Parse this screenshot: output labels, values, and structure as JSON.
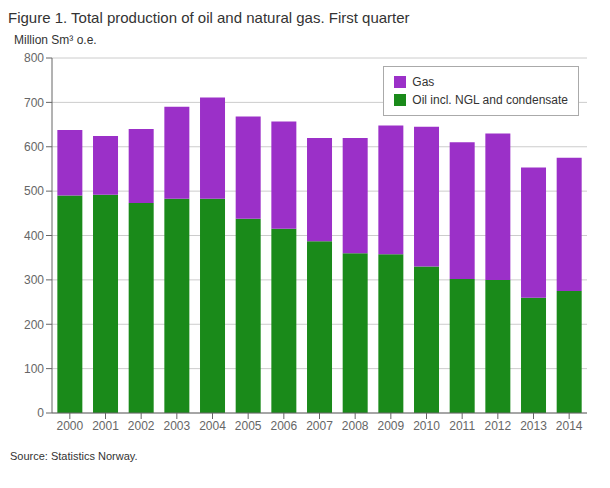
{
  "chart_data": {
    "type": "bar",
    "title": "Figure 1. Total production of oil and natural gas. First quarter",
    "y_label": "Million Sm³ o.e.",
    "annotations": [
      "Source: Statistics Norway."
    ],
    "categories": [
      "2000",
      "2001",
      "2002",
      "2003",
      "2004",
      "2005",
      "2006",
      "2007",
      "2008",
      "2009",
      "2010",
      "2011",
      "2012",
      "2013",
      "2014"
    ],
    "series": [
      {
        "name": "Oil incl. NGL and condensate",
        "color": "#1a8a1a",
        "values": [
          490,
          492,
          473,
          483,
          483,
          438,
          415,
          387,
          360,
          358,
          330,
          302,
          300,
          260,
          275
        ]
      },
      {
        "name": "Gas",
        "color": "#9b30c8",
        "values": [
          148,
          132,
          167,
          207,
          228,
          230,
          242,
          233,
          260,
          290,
          315,
          308,
          330,
          293,
          300
        ]
      }
    ],
    "stacked": true,
    "ylim": [
      0,
      800
    ],
    "yticks": [
      0,
      100,
      200,
      300,
      400,
      500,
      600,
      700,
      800
    ],
    "grid": true,
    "legend": "upper right"
  }
}
